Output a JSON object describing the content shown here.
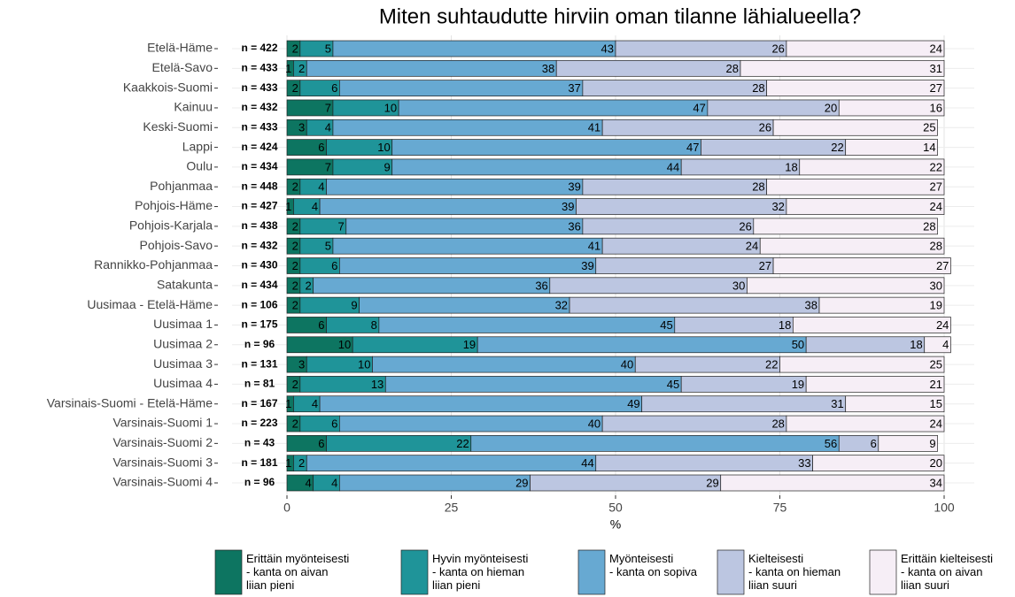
{
  "chart_data": {
    "type": "stacked_barh",
    "title": "Miten suhtaudutte hirviin oman tilanne lähialueella?",
    "x_label": "%",
    "categories": [
      "Etelä-Häme",
      "Etelä-Savo",
      "Kaakkois-Suomi",
      "Kainuu",
      "Keski-Suomi",
      "Lappi",
      "Oulu",
      "Pohjanmaa",
      "Pohjois-Häme",
      "Pohjois-Karjala",
      "Pohjois-Savo",
      "Rannikko-Pohjanmaa",
      "Satakunta",
      "Uusimaa - Etelä-Häme",
      "Uusimaa 1",
      "Uusimaa 2",
      "Uusimaa 3",
      "Uusimaa 4",
      "Varsinais-Suomi - Etelä-Häme",
      "Varsinais-Suomi 1",
      "Varsinais-Suomi 2",
      "Varsinais-Suomi 3",
      "Varsinais-Suomi 4"
    ],
    "n_labels": [
      "n = 422",
      "n = 433",
      "n = 433",
      "n = 432",
      "n = 433",
      "n = 424",
      "n = 434",
      "n = 448",
      "n = 427",
      "n = 438",
      "n = 432",
      "n = 430",
      "n = 434",
      "n = 106",
      "n = 175",
      "n = 96",
      "n = 131",
      "n = 81",
      "n = 167",
      "n = 223",
      "n = 43",
      "n = 181",
      "n = 96"
    ],
    "series": [
      {
        "name": "Erittäin myönteisesti\n - kanta on aivan\nliian pieni",
        "color": "#0d7561",
        "values": [
          2,
          1,
          2,
          7,
          3,
          6,
          7,
          2,
          1,
          2,
          2,
          2,
          2,
          2,
          6,
          10,
          3,
          2,
          1,
          2,
          6,
          1,
          4
        ]
      },
      {
        "name": "Hyvin myönteisesti\n - kanta on hieman\nliian pieni",
        "color": "#1f9499",
        "values": [
          5,
          2,
          6,
          10,
          4,
          10,
          9,
          4,
          4,
          7,
          5,
          6,
          2,
          9,
          8,
          19,
          10,
          13,
          4,
          6,
          22,
          2,
          4
        ]
      },
      {
        "name": "Myönteisesti\n - kanta on sopiva",
        "color": "#67a9d2",
        "values": [
          43,
          38,
          37,
          47,
          41,
          47,
          44,
          39,
          39,
          36,
          41,
          39,
          36,
          32,
          45,
          50,
          40,
          45,
          49,
          40,
          56,
          44,
          29
        ]
      },
      {
        "name": "Kielteisesti\n - kanta on hieman\nliian suuri",
        "color": "#bcc6e1",
        "values": [
          26,
          28,
          28,
          20,
          26,
          22,
          18,
          28,
          32,
          26,
          24,
          27,
          30,
          38,
          18,
          18,
          22,
          19,
          31,
          28,
          6,
          33,
          29
        ]
      },
      {
        "name": "Erittäin kielteisesti\n - kanta on aivan\nliian suuri",
        "color": "#f6eef6",
        "values": [
          24,
          31,
          27,
          16,
          25,
          14,
          22,
          27,
          24,
          28,
          28,
          27,
          30,
          19,
          24,
          4,
          25,
          21,
          15,
          24,
          9,
          20,
          34
        ]
      }
    ],
    "xlim": [
      0,
      100
    ],
    "xticks": [
      0,
      25,
      50,
      75,
      100
    ],
    "grid": true
  }
}
